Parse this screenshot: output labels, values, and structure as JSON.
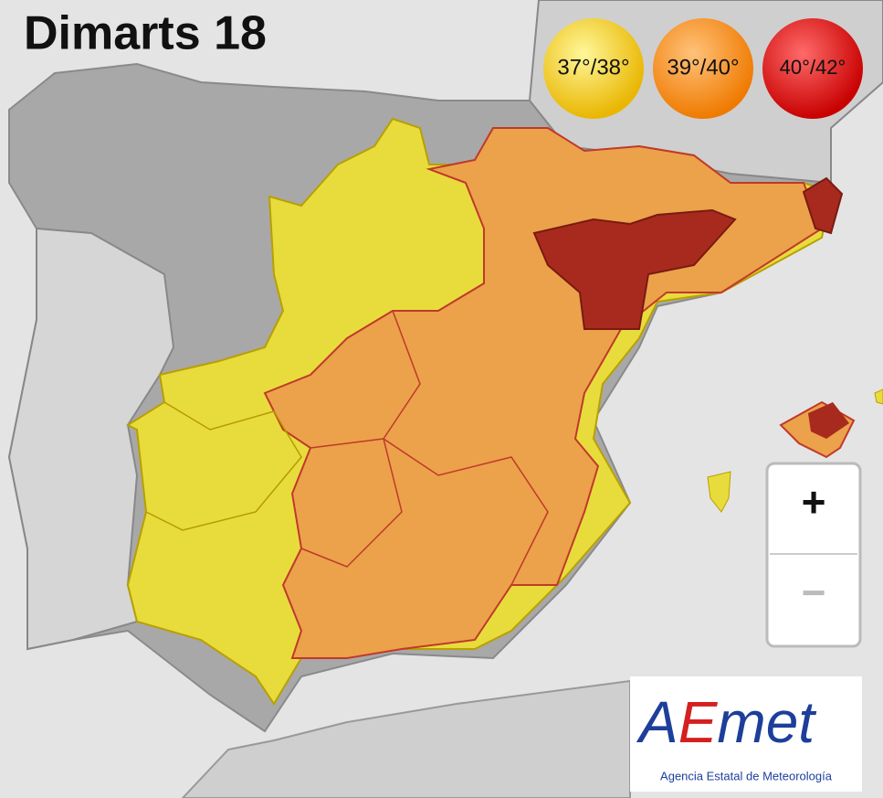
{
  "header": {
    "title": "Dimarts 18"
  },
  "legend": [
    {
      "label": "37°/38°"
    },
    {
      "label": "39°/40°"
    },
    {
      "label": "40°/42°"
    }
  ],
  "zoom": {
    "in": "+",
    "out": "−"
  },
  "logo": {
    "letter_a": "A",
    "letter_e": "E",
    "rest": "met",
    "name": "Agencia Estatal de Meteorología"
  }
}
